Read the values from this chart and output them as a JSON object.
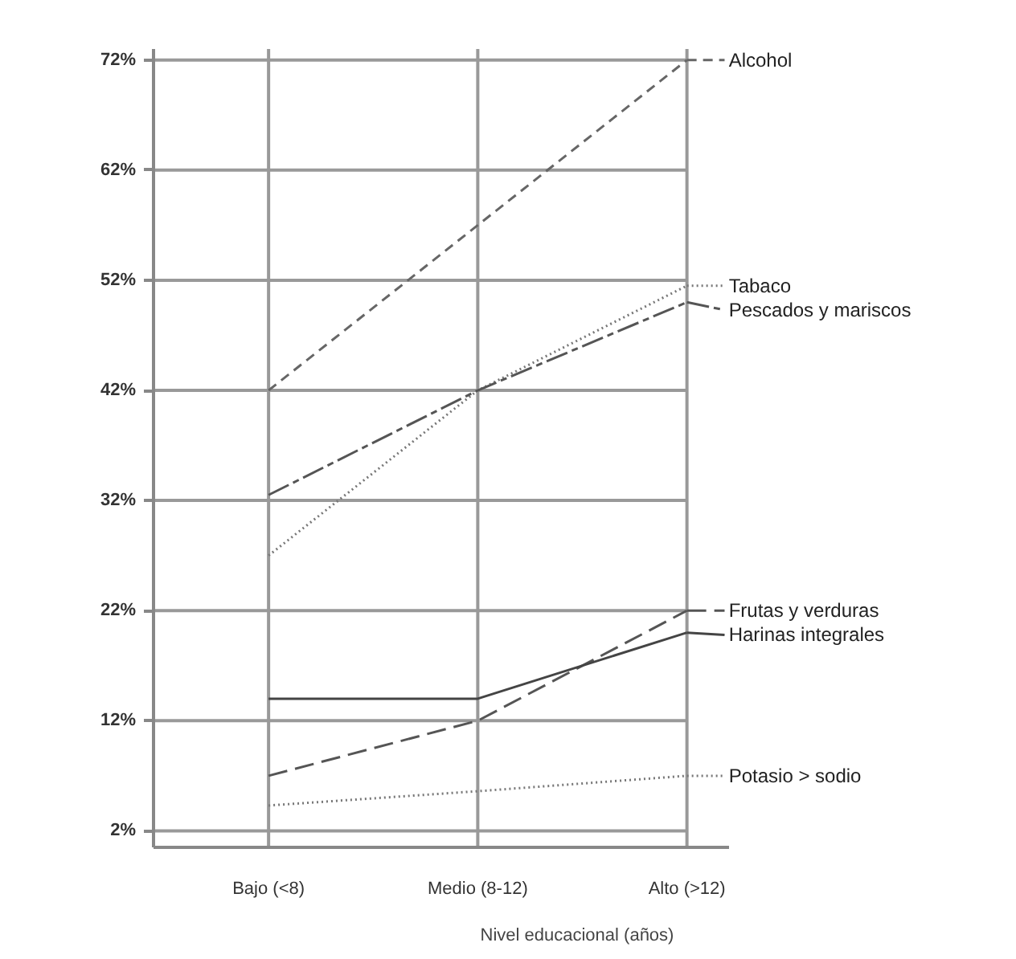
{
  "chart_data": {
    "type": "line",
    "xlabel": "Nivel educacional (años)",
    "categories": [
      "Bajo (<8)",
      "Medio (8-12)",
      "Alto (>12)"
    ],
    "series": [
      {
        "name": "Alcohol",
        "color": "#666666",
        "line_style": "dashed",
        "values": [
          42,
          57,
          72
        ]
      },
      {
        "name": "Tabaco",
        "color": "#777777",
        "line_style": "dotted",
        "values": [
          27,
          42,
          51.5
        ]
      },
      {
        "name": "Pescados y mariscos",
        "color": "#555555",
        "line_style": "dashdot",
        "values": [
          32.5,
          42,
          50
        ]
      },
      {
        "name": "Frutas y verduras",
        "color": "#555555",
        "line_style": "longdash",
        "values": [
          7,
          12,
          22
        ]
      },
      {
        "name": "Harinas integrales",
        "color": "#444444",
        "line_style": "solid",
        "values": [
          14,
          14,
          20
        ]
      },
      {
        "name": "Potasio > sodio",
        "color": "#777777",
        "line_style": "dotted",
        "values": [
          4.3,
          5.6,
          7
        ]
      }
    ],
    "ylim": [
      0.5,
      73
    ],
    "yticks": [
      {
        "value": 2,
        "label": "2%"
      },
      {
        "value": 12,
        "label": "12%"
      },
      {
        "value": 22,
        "label": "22%"
      },
      {
        "value": 32,
        "label": "32%"
      },
      {
        "value": 42,
        "label": "42%"
      },
      {
        "value": 52,
        "label": "52%"
      },
      {
        "value": 62,
        "label": "62%"
      },
      {
        "value": 72,
        "label": "72%"
      }
    ],
    "grid": true,
    "legend": "right",
    "marker": "none"
  }
}
